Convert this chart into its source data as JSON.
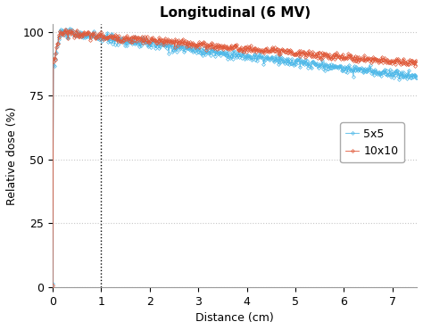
{
  "title": "Longitudinal (6 MV)",
  "xlabel": "Distance (cm)",
  "ylabel": "Relative dose (%)",
  "xlim": [
    0,
    7.5
  ],
  "ylim": [
    0,
    103
  ],
  "yticks": [
    0,
    25,
    50,
    75,
    100
  ],
  "xticks": [
    0,
    1,
    2,
    3,
    4,
    5,
    6,
    7
  ],
  "vline_x": 1.0,
  "color_5x5": "#4db8e8",
  "color_10x10": "#e05a3a",
  "legend_labels": [
    "5x5",
    "10x10"
  ],
  "markersize": 2.0,
  "linewidth": 0.6,
  "background_color": "#ffffff",
  "grid_color": "#c8c8c8",
  "title_fontsize": 11,
  "label_fontsize": 9,
  "tick_fontsize": 9,
  "n_points": 500,
  "peak_depth_5x5": 0.15,
  "peak_depth_10x10": 0.15,
  "surface_dose_5x5": 85.0,
  "surface_dose_10x10": 87.0,
  "decay_5x5": 0.026,
  "decay_10x10": 0.02,
  "noise_5x5": 0.9,
  "noise_10x10": 0.7
}
